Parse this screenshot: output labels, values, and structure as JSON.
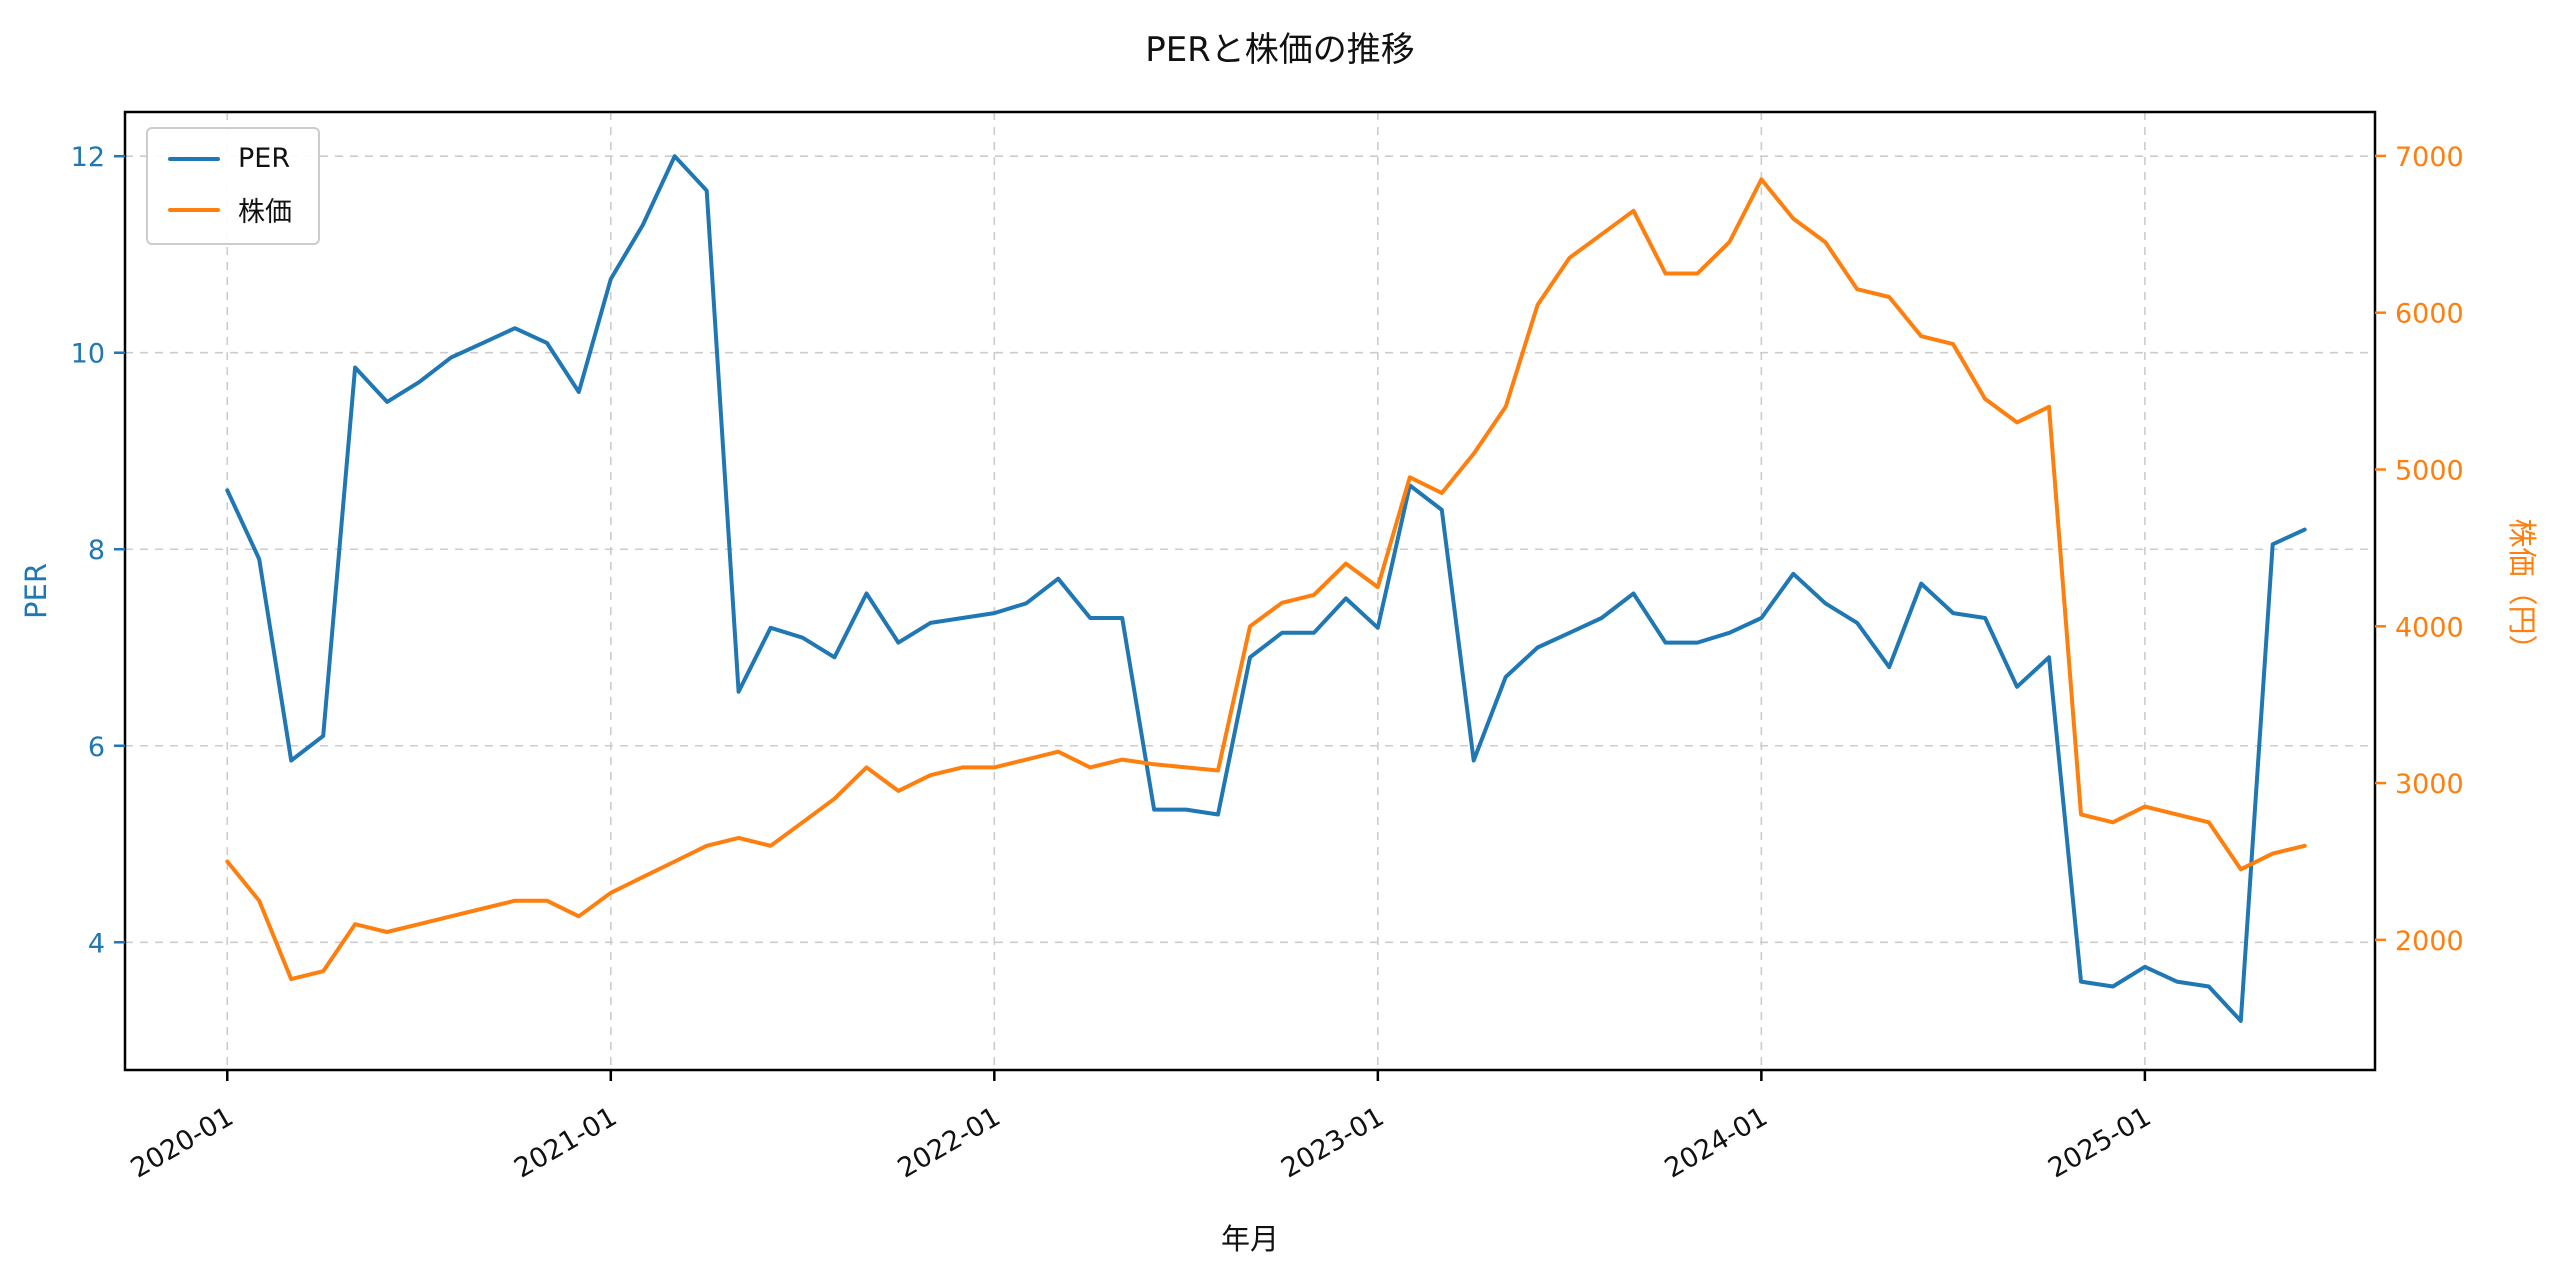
{
  "chart_data": {
    "type": "line",
    "title": "PERと株価の推移",
    "xlabel": "年月",
    "grid": {
      "show": true,
      "style": "dashed",
      "color": "#cccccc"
    },
    "legend": {
      "position": "upper-left"
    },
    "xlim_months": [
      -3.2,
      67.2
    ],
    "x_ticks": [
      {
        "month_index": 0,
        "label": "2020-01"
      },
      {
        "month_index": 12,
        "label": "2021-01"
      },
      {
        "month_index": 24,
        "label": "2022-01"
      },
      {
        "month_index": 36,
        "label": "2023-01"
      },
      {
        "month_index": 48,
        "label": "2024-01"
      },
      {
        "month_index": 60,
        "label": "2025-01"
      }
    ],
    "per_axis": {
      "label": "PER",
      "color": "#1f77b4",
      "range": [
        2.7,
        12.45
      ],
      "ticks": [
        4,
        6,
        8,
        10,
        12
      ]
    },
    "price_axis": {
      "label": "株価（円）",
      "color": "#ff7f0e",
      "range": [
        1170,
        7280
      ],
      "ticks": [
        2000,
        3000,
        4000,
        5000,
        6000,
        7000
      ]
    },
    "x_months": [
      "2020-01",
      "2020-02",
      "2020-03",
      "2020-04",
      "2020-05",
      "2020-06",
      "2020-07",
      "2020-08",
      "2020-09",
      "2020-10",
      "2020-11",
      "2020-12",
      "2021-01",
      "2021-02",
      "2021-03",
      "2021-04",
      "2021-05",
      "2021-06",
      "2021-07",
      "2021-08",
      "2021-09",
      "2021-10",
      "2021-11",
      "2021-12",
      "2022-01",
      "2022-02",
      "2022-03",
      "2022-04",
      "2022-05",
      "2022-06",
      "2022-07",
      "2022-08",
      "2022-09",
      "2022-10",
      "2022-11",
      "2022-12",
      "2023-01",
      "2023-02",
      "2023-03",
      "2023-04",
      "2023-05",
      "2023-06",
      "2023-07",
      "2023-08",
      "2023-09",
      "2023-10",
      "2023-11",
      "2023-12",
      "2024-01",
      "2024-02",
      "2024-03",
      "2024-04",
      "2024-05",
      "2024-06",
      "2024-07",
      "2024-08",
      "2024-09",
      "2024-10",
      "2024-11",
      "2024-12",
      "2025-01",
      "2025-02",
      "2025-03",
      "2025-04",
      "2025-05",
      "2025-06"
    ],
    "series": [
      {
        "name": "PER",
        "axis": "left",
        "color": "#1f77b4",
        "values": [
          8.6,
          7.9,
          5.85,
          6.1,
          9.85,
          9.5,
          9.7,
          9.95,
          10.1,
          10.25,
          10.1,
          9.6,
          10.75,
          11.3,
          12.0,
          11.65,
          6.55,
          7.2,
          7.1,
          6.9,
          7.55,
          7.05,
          7.25,
          7.3,
          7.35,
          7.45,
          7.7,
          7.3,
          7.3,
          5.35,
          5.35,
          5.3,
          6.9,
          7.15,
          7.15,
          7.5,
          7.2,
          8.65,
          8.4,
          5.85,
          6.7,
          7.0,
          7.15,
          7.3,
          7.55,
          7.05,
          7.05,
          7.15,
          7.3,
          7.75,
          7.45,
          7.25,
          6.8,
          7.65,
          7.35,
          7.3,
          6.6,
          6.9,
          3.6,
          3.55,
          3.75,
          3.6,
          3.55,
          3.2,
          8.05,
          8.2
        ]
      },
      {
        "name": "株価",
        "axis": "right",
        "color": "#ff7f0e",
        "values": [
          2500,
          2250,
          1750,
          1800,
          2100,
          2050,
          2100,
          2150,
          2200,
          2250,
          2250,
          2150,
          2300,
          2400,
          2500,
          2600,
          2650,
          2600,
          2750,
          2900,
          3100,
          2950,
          3050,
          3100,
          3100,
          3150,
          3200,
          3100,
          3150,
          3120,
          3100,
          3080,
          4000,
          4150,
          4200,
          4400,
          4250,
          4950,
          4850,
          5100,
          5400,
          6050,
          6350,
          6500,
          6650,
          6250,
          6250,
          6450,
          6850,
          6600,
          6450,
          6150,
          6100,
          5850,
          5800,
          5450,
          5300,
          5400,
          2800,
          2750,
          2850,
          2800,
          2750,
          2450,
          2550,
          2600
        ]
      }
    ]
  }
}
